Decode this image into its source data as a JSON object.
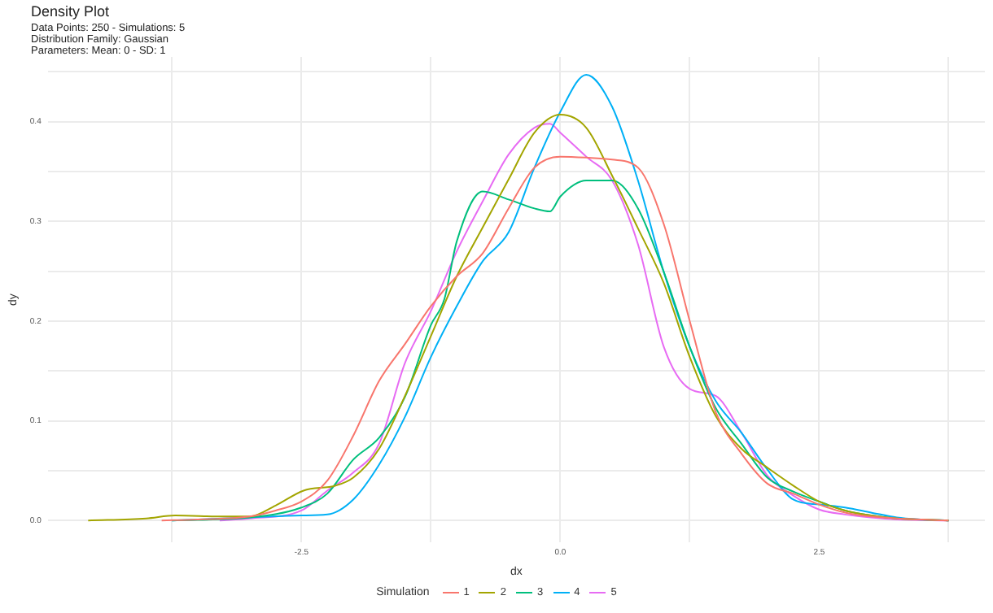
{
  "chart_data": {
    "type": "line",
    "title": "Density Plot",
    "subtitle": "Data Points: 250 - Simulations: 5\nDistribution Family: Gaussian\nParameters: Mean: 0 - SD: 1",
    "xlabel": "dx",
    "ylabel": "dy",
    "legend_title": "Simulation",
    "legend": "bottom",
    "grid": true,
    "xlim": [
      -4.95,
      4.1
    ],
    "ylim": [
      -0.022,
      0.465
    ],
    "xticks": [
      {
        "value": -3.75,
        "label": null
      },
      -2.5,
      {
        "value": -1.25,
        "label": null
      },
      {
        "value": 0,
        "label": "0.0"
      },
      {
        "value": 1.25,
        "label": null
      },
      2.5,
      {
        "value": 3.75,
        "label": null
      }
    ],
    "yticks": [
      {
        "value": 0,
        "label": "0.0"
      },
      {
        "value": 0.05,
        "label": null
      },
      0.1,
      {
        "value": 0.15,
        "label": null
      },
      0.2,
      {
        "value": 0.25,
        "label": null
      },
      0.3,
      {
        "value": 0.35,
        "label": null
      },
      0.4,
      {
        "value": 0.45,
        "label": null
      }
    ],
    "series": [
      {
        "name": "1",
        "color": "#f8766d",
        "x": [
          -3.85,
          -3.5,
          -3,
          -2.75,
          -2.5,
          -2.25,
          -2,
          -1.75,
          -1.5,
          -1.25,
          -1,
          -0.75,
          -0.5,
          -0.25,
          0,
          0.25,
          0.5,
          0.75,
          1,
          1.25,
          1.5,
          1.75,
          2,
          2.25,
          2.5,
          2.75,
          3,
          3.25,
          3.75
        ],
        "values": [
          0,
          0.001,
          0.004,
          0.01,
          0.019,
          0.04,
          0.085,
          0.14,
          0.177,
          0.215,
          0.245,
          0.268,
          0.313,
          0.354,
          0.365,
          0.364,
          0.362,
          0.354,
          0.297,
          0.2,
          0.109,
          0.067,
          0.037,
          0.027,
          0.016,
          0.008,
          0.004,
          0.002,
          0
        ]
      },
      {
        "name": "2",
        "color": "#a3a500",
        "x": [
          -4.56,
          -4,
          -3.72,
          -3.25,
          -3,
          -2.75,
          -2.48,
          -2.17,
          -2,
          -1.75,
          -1.5,
          -1.25,
          -1,
          -0.75,
          -0.5,
          -0.25,
          0,
          0.25,
          0.5,
          0.75,
          1,
          1.25,
          1.5,
          1.75,
          2,
          2.25,
          2.5,
          2.75,
          3,
          3.25,
          3.5,
          3.75
        ],
        "values": [
          0,
          0.002,
          0.005,
          0.004,
          0.004,
          0.015,
          0.03,
          0.035,
          0.043,
          0.072,
          0.125,
          0.185,
          0.245,
          0.294,
          0.342,
          0.389,
          0.407,
          0.394,
          0.346,
          0.293,
          0.238,
          0.164,
          0.105,
          0.072,
          0.053,
          0.035,
          0.019,
          0.01,
          0.005,
          0.002,
          0.001,
          0
        ]
      },
      {
        "name": "3",
        "color": "#00bf7d",
        "x": [
          -3.75,
          -3,
          -2.5,
          -2.25,
          -2,
          -1.75,
          -1.5,
          -1.25,
          -1.12,
          -1,
          -0.75,
          -0.5,
          -0.25,
          -0.1,
          0,
          0.25,
          0.5,
          0.75,
          1,
          1.25,
          1.5,
          1.75,
          2,
          2.25,
          2.5,
          2.75,
          3,
          3.25,
          3.75
        ],
        "values": [
          0,
          0.003,
          0.013,
          0.027,
          0.061,
          0.083,
          0.124,
          0.196,
          0.222,
          0.28,
          0.33,
          0.322,
          0.313,
          0.31,
          0.325,
          0.341,
          0.341,
          0.313,
          0.249,
          0.174,
          0.113,
          0.077,
          0.043,
          0.029,
          0.019,
          0.01,
          0.005,
          0.002,
          0
        ]
      },
      {
        "name": "4",
        "color": "#00b0f6",
        "x": [
          -3.75,
          -3,
          -2.5,
          -2.25,
          -2,
          -1.75,
          -1.5,
          -1.25,
          -1,
          -0.75,
          -0.5,
          -0.25,
          0,
          0.25,
          0.5,
          0.75,
          1,
          1.25,
          1.5,
          1.75,
          2,
          2.25,
          2.5,
          2.75,
          3,
          3.25,
          3.5,
          3.75
        ],
        "values": [
          0,
          0.003,
          0.005,
          0.006,
          0.021,
          0.056,
          0.104,
          0.164,
          0.215,
          0.26,
          0.289,
          0.354,
          0.41,
          0.447,
          0.415,
          0.341,
          0.249,
          0.174,
          0.12,
          0.088,
          0.051,
          0.021,
          0.016,
          0.013,
          0.008,
          0.003,
          0.001,
          0
        ]
      },
      {
        "name": "5",
        "color": "#e76bf3",
        "x": [
          -3.29,
          -3,
          -2.5,
          -2.25,
          -2,
          -1.75,
          -1.5,
          -1.25,
          -1,
          -0.75,
          -0.5,
          -0.25,
          -0.1,
          0,
          0.25,
          0.5,
          0.75,
          1,
          1.25,
          1.5,
          1.75,
          2,
          2.25,
          2.5,
          2.75,
          3,
          3.25,
          3.75
        ],
        "values": [
          0,
          0.002,
          0.01,
          0.03,
          0.048,
          0.077,
          0.158,
          0.21,
          0.27,
          0.32,
          0.367,
          0.394,
          0.398,
          0.389,
          0.365,
          0.341,
          0.277,
          0.174,
          0.132,
          0.125,
          0.088,
          0.045,
          0.025,
          0.011,
          0.006,
          0.003,
          0.001,
          0
        ]
      }
    ]
  }
}
